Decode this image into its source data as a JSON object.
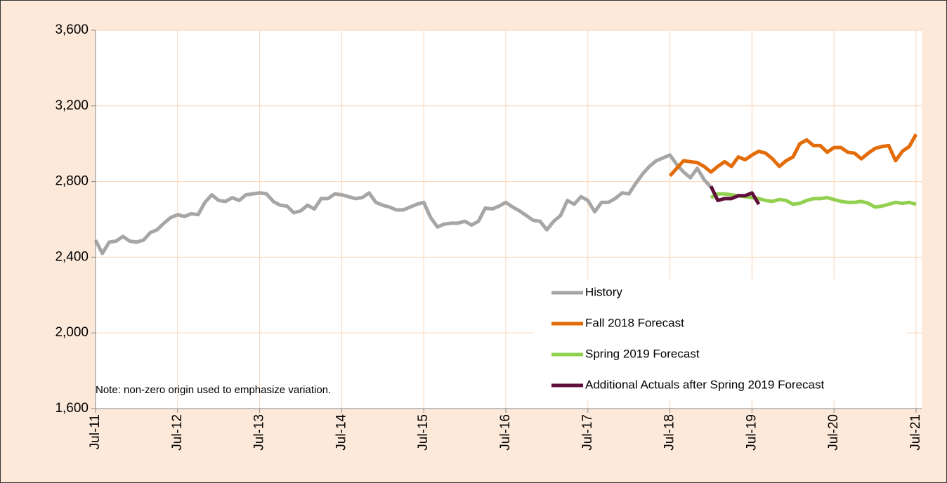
{
  "chart_data": {
    "type": "line",
    "note": "Note: non-zero origin used to emphasize variation.",
    "categories": [
      "Jul-11",
      null,
      null,
      null,
      null,
      null,
      null,
      null,
      null,
      null,
      null,
      null,
      "Jul-12",
      null,
      null,
      null,
      null,
      null,
      null,
      null,
      null,
      null,
      null,
      null,
      "Jul-13",
      null,
      null,
      null,
      null,
      null,
      null,
      null,
      null,
      null,
      null,
      null,
      "Jul-14",
      null,
      null,
      null,
      null,
      null,
      null,
      null,
      null,
      null,
      null,
      null,
      "Jul-15",
      null,
      null,
      null,
      null,
      null,
      null,
      null,
      null,
      null,
      null,
      null,
      "Jul-16",
      null,
      null,
      null,
      null,
      null,
      null,
      null,
      null,
      null,
      null,
      null,
      "Jul-17",
      null,
      null,
      null,
      null,
      null,
      null,
      null,
      null,
      null,
      null,
      null,
      "Jul-18",
      null,
      null,
      null,
      null,
      null,
      null,
      null,
      null,
      null,
      null,
      null,
      "Jul-19",
      null,
      null,
      null,
      null,
      null,
      null,
      null,
      null,
      null,
      null,
      null,
      "Jul-20",
      null,
      null,
      null,
      null,
      null,
      null,
      null,
      null,
      null,
      null,
      null,
      "Jul-21"
    ],
    "series": [
      {
        "name": "History",
        "color": "#a6a6a6",
        "values": [
          2490,
          2420,
          2480,
          2485,
          2510,
          2485,
          2480,
          2490,
          2530,
          2545,
          2580,
          2610,
          2625,
          2615,
          2630,
          2625,
          2690,
          2730,
          2700,
          2695,
          2715,
          2700,
          2730,
          2735,
          2740,
          2735,
          2695,
          2675,
          2670,
          2635,
          2645,
          2675,
          2655,
          2710,
          2710,
          2735,
          2730,
          2720,
          2710,
          2715,
          2740,
          2690,
          2675,
          2665,
          2650,
          2650,
          2665,
          2680,
          2690,
          2610,
          2560,
          2575,
          2580,
          2580,
          2590,
          2570,
          2590,
          2660,
          2655,
          2670,
          2690,
          2665,
          2645,
          2620,
          2595,
          2590,
          2545,
          2590,
          2620,
          2700,
          2680,
          2720,
          2700,
          2640,
          2690,
          2690,
          2710,
          2740,
          2735,
          2790,
          2840,
          2880,
          2910,
          2925,
          2940,
          2890,
          2850,
          2820,
          2870,
          2810,
          2770,
          null,
          null,
          null,
          null,
          null,
          null,
          null,
          null,
          null,
          null,
          null,
          null,
          null,
          null,
          null,
          null,
          null,
          null,
          null,
          null,
          null,
          null,
          null,
          null,
          null,
          null,
          null,
          null,
          null,
          null
        ]
      },
      {
        "name": "Fall 2018 Forecast",
        "color": "#e36c09",
        "values": [
          null,
          null,
          null,
          null,
          null,
          null,
          null,
          null,
          null,
          null,
          null,
          null,
          null,
          null,
          null,
          null,
          null,
          null,
          null,
          null,
          null,
          null,
          null,
          null,
          null,
          null,
          null,
          null,
          null,
          null,
          null,
          null,
          null,
          null,
          null,
          null,
          null,
          null,
          null,
          null,
          null,
          null,
          null,
          null,
          null,
          null,
          null,
          null,
          null,
          null,
          null,
          null,
          null,
          null,
          null,
          null,
          null,
          null,
          null,
          null,
          null,
          null,
          null,
          null,
          null,
          null,
          null,
          null,
          null,
          null,
          null,
          null,
          null,
          null,
          null,
          null,
          null,
          null,
          null,
          null,
          null,
          null,
          null,
          null,
          2830,
          2870,
          2910,
          2905,
          2900,
          2880,
          2850,
          2880,
          2905,
          2880,
          2930,
          2915,
          2940,
          2960,
          2950,
          2920,
          2880,
          2910,
          2930,
          3000,
          3020,
          2990,
          2990,
          2955,
          2980,
          2980,
          2955,
          2950,
          2920,
          2950,
          2975,
          2985,
          2990,
          2910,
          2960,
          2985,
          3050
        ]
      },
      {
        "name": "Spring 2019 Forecast",
        "color": "#92d050",
        "values": [
          null,
          null,
          null,
          null,
          null,
          null,
          null,
          null,
          null,
          null,
          null,
          null,
          null,
          null,
          null,
          null,
          null,
          null,
          null,
          null,
          null,
          null,
          null,
          null,
          null,
          null,
          null,
          null,
          null,
          null,
          null,
          null,
          null,
          null,
          null,
          null,
          null,
          null,
          null,
          null,
          null,
          null,
          null,
          null,
          null,
          null,
          null,
          null,
          null,
          null,
          null,
          null,
          null,
          null,
          null,
          null,
          null,
          null,
          null,
          null,
          null,
          null,
          null,
          null,
          null,
          null,
          null,
          null,
          null,
          null,
          null,
          null,
          null,
          null,
          null,
          null,
          null,
          null,
          null,
          null,
          null,
          null,
          null,
          null,
          null,
          null,
          null,
          null,
          null,
          null,
          2715,
          2735,
          2735,
          2730,
          2725,
          2720,
          2715,
          2710,
          2700,
          2695,
          2705,
          2700,
          2680,
          2685,
          2700,
          2710,
          2710,
          2715,
          2705,
          2695,
          2690,
          2690,
          2695,
          2685,
          2665,
          2670,
          2680,
          2690,
          2685,
          2690,
          2680
        ]
      },
      {
        "name": "Additional Actuals after Spring 2019 Forecast",
        "color": "#5f0f3a",
        "values": [
          null,
          null,
          null,
          null,
          null,
          null,
          null,
          null,
          null,
          null,
          null,
          null,
          null,
          null,
          null,
          null,
          null,
          null,
          null,
          null,
          null,
          null,
          null,
          null,
          null,
          null,
          null,
          null,
          null,
          null,
          null,
          null,
          null,
          null,
          null,
          null,
          null,
          null,
          null,
          null,
          null,
          null,
          null,
          null,
          null,
          null,
          null,
          null,
          null,
          null,
          null,
          null,
          null,
          null,
          null,
          null,
          null,
          null,
          null,
          null,
          null,
          null,
          null,
          null,
          null,
          null,
          null,
          null,
          null,
          null,
          null,
          null,
          null,
          null,
          null,
          null,
          null,
          null,
          null,
          null,
          null,
          null,
          null,
          null,
          null,
          null,
          null,
          null,
          null,
          null,
          2775,
          2700,
          2710,
          2710,
          2725,
          2725,
          2740,
          2680,
          null,
          null,
          null,
          null,
          null,
          null,
          null,
          null,
          null,
          null,
          null,
          null,
          null,
          null,
          null,
          null,
          null,
          null,
          null,
          null,
          null,
          null,
          null
        ]
      }
    ],
    "ylim": [
      1600,
      3600
    ],
    "yticks": [
      {
        "value": 1600,
        "label": "1,600"
      },
      {
        "value": 2000,
        "label": "2,000"
      },
      {
        "value": 2400,
        "label": "2,400"
      },
      {
        "value": 2800,
        "label": "2,800"
      },
      {
        "value": 3200,
        "label": "3,200"
      },
      {
        "value": 3600,
        "label": "3,600"
      }
    ],
    "grid": true,
    "legend": "lower right"
  }
}
